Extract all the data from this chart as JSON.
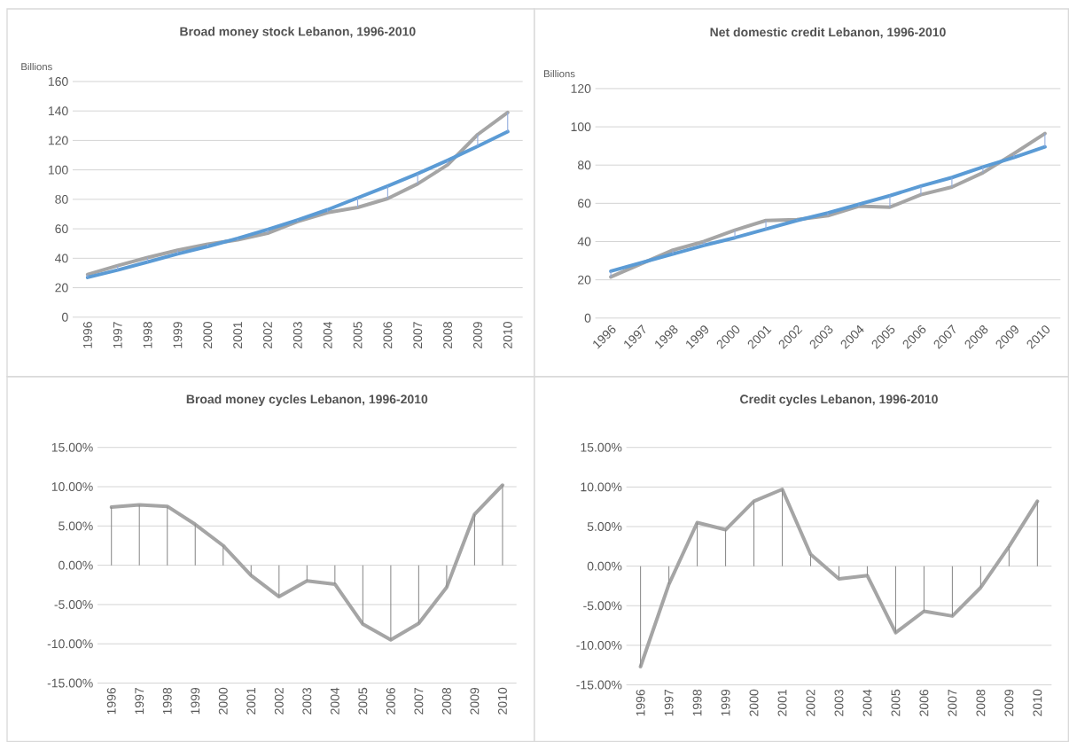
{
  "chart_data": [
    {
      "type": "line",
      "title": "Broad money stock Lebanon, 1996-2010",
      "ylabel": "Billions",
      "categories": [
        "1996",
        "1997",
        "1998",
        "1999",
        "2000",
        "2001",
        "2002",
        "2003",
        "2004",
        "2005",
        "2006",
        "2007",
        "2008",
        "2009",
        "2010"
      ],
      "series": [
        {
          "color": "#a5a5a5",
          "values": [
            29,
            35,
            40.5,
            45.5,
            49.5,
            52.5,
            57,
            65,
            71,
            74.5,
            80.5,
            90.5,
            103.5,
            124,
            139
          ]
        },
        {
          "type": "bar",
          "color": "#8faadc",
          "base": [
            27,
            32,
            37.5,
            43,
            48,
            53.5,
            59.5,
            66,
            73,
            81,
            89,
            97.5,
            106.5,
            116,
            126
          ],
          "values": [
            2,
            3,
            3,
            2.5,
            1.5,
            -1,
            -2.5,
            -1,
            -2,
            -6.5,
            -8.5,
            -7,
            -3,
            8,
            13
          ]
        },
        {
          "color": "#5b9bd5",
          "values": [
            27,
            32,
            37.5,
            43,
            48,
            53.5,
            59.5,
            66,
            73,
            81,
            89,
            97.5,
            106.5,
            116,
            126
          ]
        }
      ],
      "ylim": [
        0,
        160
      ],
      "yticks": [
        0,
        20,
        40,
        60,
        80,
        100,
        120,
        140,
        160
      ],
      "grid": "y",
      "marker": "none",
      "line_style": "solid"
    },
    {
      "type": "line",
      "title": "Net domestic credit Lebanon, 1996-2010",
      "ylabel": "Billions",
      "categories": [
        "1996",
        "1997",
        "1998",
        "1999",
        "2000",
        "2001",
        "2002",
        "2003",
        "2004",
        "2005",
        "2006",
        "2007",
        "2008",
        "2009",
        "2010"
      ],
      "series": [
        {
          "color": "#a5a5a5",
          "values": [
            21.5,
            28.5,
            35.5,
            40,
            46,
            51,
            51.5,
            53.5,
            58.5,
            58,
            64.5,
            68.5,
            76,
            86,
            96.5
          ]
        },
        {
          "type": "bar",
          "color": "#8faadc",
          "base": [
            24.5,
            29,
            33.5,
            38,
            42,
            46.5,
            51,
            55,
            59.5,
            64,
            69,
            73.5,
            79,
            84,
            89.5
          ],
          "values": [
            -3,
            -0.5,
            2,
            2,
            4,
            4.5,
            0.5,
            -1.5,
            -1,
            -6,
            -4.5,
            -5,
            -3,
            2,
            7
          ]
        },
        {
          "color": "#5b9bd5",
          "values": [
            24.5,
            29,
            33.5,
            38,
            42,
            46.5,
            51,
            55,
            59.5,
            64,
            69,
            73.5,
            79,
            84,
            89.5
          ]
        }
      ],
      "ylim": [
        0,
        120
      ],
      "yticks": [
        0,
        20,
        40,
        60,
        80,
        100,
        120
      ],
      "grid": "y",
      "marker": "none",
      "line_style": "solid"
    },
    {
      "type": "line",
      "title": "Broad money cycles Lebanon, 1996-2010",
      "categories": [
        "1996",
        "1997",
        "1998",
        "1999",
        "2000",
        "2001",
        "2002",
        "2003",
        "2004",
        "2005",
        "2006",
        "2007",
        "2008",
        "2009",
        "2010"
      ],
      "series": [
        {
          "type": "bar",
          "color": "#8c8c8c",
          "values": [
            7.4,
            7.7,
            7.5,
            5.2,
            2.5,
            -1.3,
            -4.0,
            -2.0,
            -2.4,
            -7.5,
            -9.5,
            -7.4,
            -2.8,
            6.5,
            10.2
          ]
        },
        {
          "color": "#a5a5a5",
          "values": [
            7.4,
            7.7,
            7.5,
            5.2,
            2.5,
            -1.3,
            -4.0,
            -2.0,
            -2.4,
            -7.5,
            -9.5,
            -7.4,
            -2.8,
            6.5,
            10.2
          ]
        }
      ],
      "ylim": [
        -15,
        15
      ],
      "yticks": [
        {
          "value": -15,
          "label": "-15.00%"
        },
        {
          "value": -10,
          "label": "-10.00%"
        },
        {
          "value": -5,
          "label": "-5.00%"
        },
        {
          "value": 0,
          "label": "0.00%"
        },
        {
          "value": 5,
          "label": "5.00%"
        },
        {
          "value": 10,
          "label": "10.00%"
        },
        {
          "value": 15,
          "label": "15.00%"
        }
      ],
      "grid": "y",
      "marker": "none",
      "line_style": "solid"
    },
    {
      "type": "line",
      "title": "Credit cycles Lebanon, 1996-2010",
      "categories": [
        "1996",
        "1997",
        "1998",
        "1999",
        "2000",
        "2001",
        "2002",
        "2003",
        "2004",
        "2005",
        "2006",
        "2007",
        "2008",
        "2009",
        "2010"
      ],
      "series": [
        {
          "type": "bar",
          "color": "#8c8c8c",
          "values": [
            -12.7,
            -2.3,
            5.5,
            4.6,
            8.2,
            9.7,
            1.5,
            -1.6,
            -1.2,
            -8.4,
            -5.7,
            -6.3,
            -2.7,
            2.5,
            8.2
          ]
        },
        {
          "color": "#a5a5a5",
          "values": [
            -12.7,
            -2.3,
            5.5,
            4.6,
            8.2,
            9.7,
            1.5,
            -1.6,
            -1.2,
            -8.4,
            -5.7,
            -6.3,
            -2.7,
            2.5,
            8.2
          ]
        }
      ],
      "ylim": [
        -15,
        15
      ],
      "yticks": [
        {
          "value": -15,
          "label": "-15.00%"
        },
        {
          "value": -10,
          "label": "-10.00%"
        },
        {
          "value": -5,
          "label": "-5.00%"
        },
        {
          "value": 0,
          "label": "0.00%"
        },
        {
          "value": 5,
          "label": "5.00%"
        },
        {
          "value": 10,
          "label": "10.00%"
        },
        {
          "value": 15,
          "label": "15.00%"
        }
      ],
      "grid": "y",
      "marker": "none",
      "line_style": "solid"
    }
  ]
}
